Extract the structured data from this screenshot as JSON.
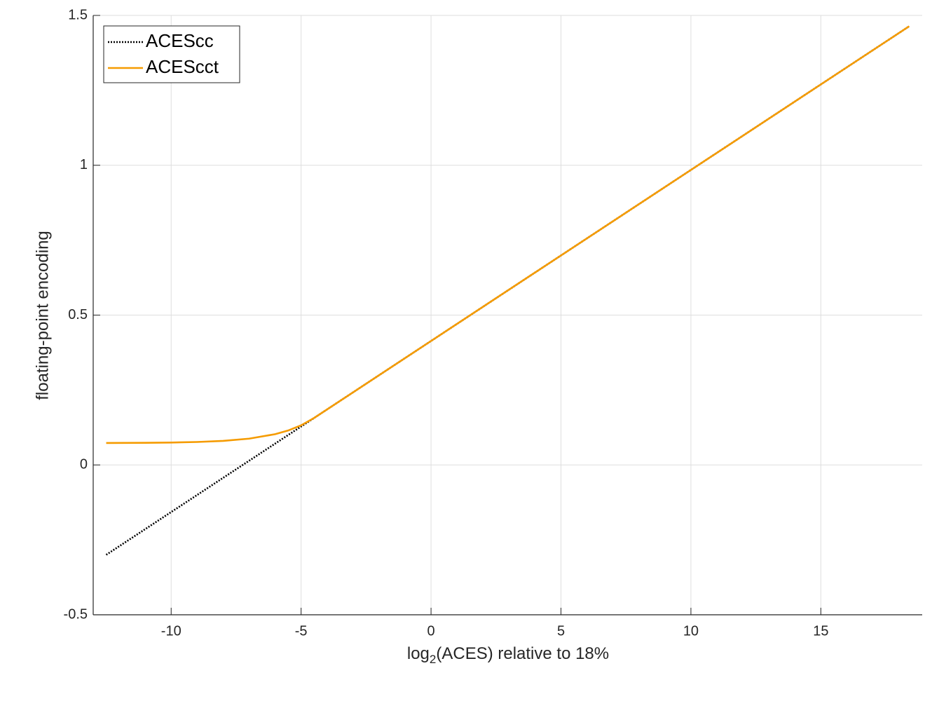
{
  "chart_data": {
    "type": "line",
    "xlabel": [
      "log",
      "2",
      "(ACES) relative to 18%"
    ],
    "ylabel": "floating-point encoding",
    "x": [
      -12.5,
      -11,
      -10,
      -9,
      -8,
      -7,
      -6,
      -5.5,
      -5,
      -4.5,
      0,
      5,
      10,
      15,
      18.4
    ],
    "series": [
      {
        "name": "ACEScc",
        "color": "#000000",
        "dash": "dotted",
        "values": [
          -0.2999,
          -0.2143,
          -0.1572,
          -0.1002,
          -0.043,
          0.014,
          0.0711,
          0.0997,
          0.1282,
          0.1567,
          0.4136,
          0.699,
          0.9844,
          1.2698,
          1.4638
        ]
      },
      {
        "name": "ACEScct",
        "color": "#f59b00",
        "dash": "solid",
        "values": [
          0.0732,
          0.0738,
          0.0748,
          0.0766,
          0.0803,
          0.0877,
          0.1026,
          0.1148,
          0.1322,
          0.1567,
          0.4136,
          0.699,
          0.9844,
          1.2698,
          1.4638
        ]
      }
    ],
    "xlim": [
      -13,
      18.9
    ],
    "ylim": [
      -0.5,
      1.5
    ],
    "xticks": [
      -10,
      -5,
      0,
      5,
      10,
      15
    ],
    "yticks": [
      -0.5,
      0,
      0.5,
      1,
      1.5
    ],
    "grid": true,
    "legend": "upper left"
  }
}
